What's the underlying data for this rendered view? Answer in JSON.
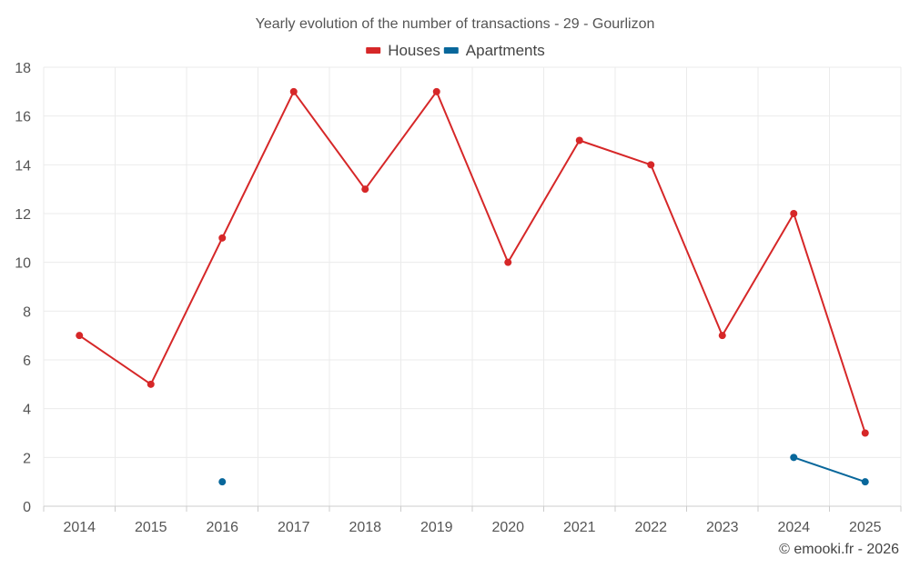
{
  "chart_data": {
    "type": "line",
    "title": "Yearly evolution of the number of transactions - 29 - Gourlizon",
    "xlabel": "",
    "ylabel": "",
    "categories": [
      "2014",
      "2015",
      "2016",
      "2017",
      "2018",
      "2019",
      "2020",
      "2021",
      "2022",
      "2023",
      "2024",
      "2025"
    ],
    "ylim": [
      0,
      18
    ],
    "yticks": [
      0,
      2,
      4,
      6,
      8,
      10,
      12,
      14,
      16,
      18
    ],
    "grid": true,
    "legend_position": "top-center",
    "series": [
      {
        "name": "Houses",
        "color": "#d62728",
        "values": [
          7,
          5,
          11,
          17,
          13,
          17,
          10,
          15,
          14,
          7,
          12,
          3
        ]
      },
      {
        "name": "Apartments",
        "color": "#08679b",
        "values": [
          null,
          null,
          1,
          null,
          null,
          null,
          null,
          null,
          null,
          null,
          2,
          1
        ]
      }
    ]
  },
  "credit": "© emooki.fr - 2026"
}
